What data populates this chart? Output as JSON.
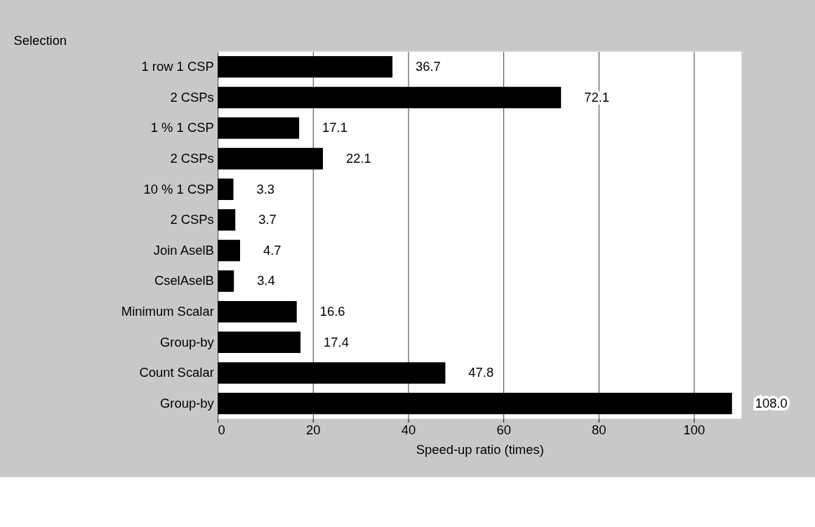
{
  "chart_data": {
    "type": "bar",
    "orientation": "horizontal",
    "xlabel": "Speed-up ratio (times)",
    "categories": [
      "1 row  1 CSP",
      "2 CSPs",
      "1 %  1 CSP",
      "2 CSPs",
      "10 %  1 CSP",
      "2 CSPs",
      "Join  AselB",
      "CselAselB",
      "Minimum  Scalar",
      "Group-by",
      "Count  Scalar",
      "Group-by"
    ],
    "values": [
      36.7,
      72.1,
      17.1,
      22.1,
      3.3,
      3.7,
      4.7,
      3.4,
      16.6,
      17.4,
      47.8,
      108.0
    ],
    "value_labels": [
      "36.7",
      "72.1",
      "17.1",
      "22.1",
      "3.3",
      "3.7",
      "4.7",
      "3.4",
      "16.6",
      "17.4",
      "47.8",
      "108.0"
    ],
    "color": "#000000",
    "xlim": [
      0,
      110
    ],
    "xticks": [
      0,
      20,
      40,
      60,
      80,
      100
    ],
    "grid": "x",
    "annotations": [
      "Selection"
    ]
  }
}
